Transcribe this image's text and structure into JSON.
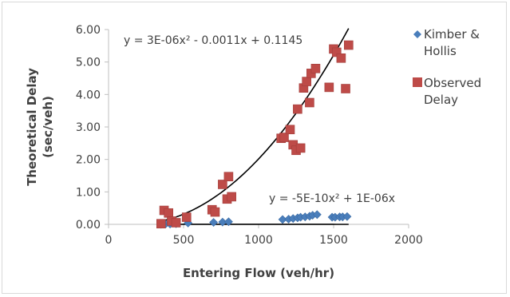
{
  "chart_data": {
    "type": "scatter",
    "xlabel": "Entering Flow (veh/hr)",
    "ylabel_lines": [
      "Theoretical Delay",
      "(sec/veh)"
    ],
    "xlim": [
      0,
      2000
    ],
    "ylim": [
      0,
      6
    ],
    "x_ticks": [
      "0",
      "500",
      "1000",
      "1500",
      "2000"
    ],
    "y_ticks": [
      "0.00",
      "1.00",
      "2.00",
      "3.00",
      "4.00",
      "5.00",
      "6.00"
    ],
    "grid": false,
    "legend_position": "right",
    "series": [
      {
        "name_lines": [
          "Kimber &",
          "Hollis"
        ],
        "marker": "diamond",
        "color": "#4a7ebb",
        "points": [
          [
            350,
            0.0
          ],
          [
            380,
            0.01
          ],
          [
            410,
            0.01
          ],
          [
            450,
            0.02
          ],
          [
            530,
            0.04
          ],
          [
            700,
            0.06
          ],
          [
            760,
            0.07
          ],
          [
            800,
            0.08
          ],
          [
            1160,
            0.15
          ],
          [
            1200,
            0.16
          ],
          [
            1230,
            0.18
          ],
          [
            1260,
            0.2
          ],
          [
            1280,
            0.22
          ],
          [
            1310,
            0.23
          ],
          [
            1340,
            0.25
          ],
          [
            1360,
            0.28
          ],
          [
            1390,
            0.3
          ],
          [
            1490,
            0.22
          ],
          [
            1510,
            0.22
          ],
          [
            1540,
            0.23
          ],
          [
            1560,
            0.23
          ],
          [
            1590,
            0.24
          ]
        ],
        "trendline": {
          "coeffs": [
            -5e-10,
            1e-06,
            0
          ],
          "x_range": [
            350,
            1600
          ],
          "color": "#000000"
        },
        "equation": "y = -5E-10x² + 1E-06x"
      },
      {
        "name_lines": [
          "Observed",
          "Delay"
        ],
        "marker": "square",
        "color": "#be4b48",
        "points": [
          [
            350,
            0.02
          ],
          [
            370,
            0.43
          ],
          [
            400,
            0.35
          ],
          [
            420,
            0.1
          ],
          [
            450,
            0.05
          ],
          [
            520,
            0.22
          ],
          [
            690,
            0.45
          ],
          [
            710,
            0.38
          ],
          [
            760,
            1.23
          ],
          [
            790,
            0.78
          ],
          [
            800,
            1.47
          ],
          [
            820,
            0.85
          ],
          [
            1150,
            2.65
          ],
          [
            1170,
            2.68
          ],
          [
            1210,
            2.92
          ],
          [
            1230,
            2.45
          ],
          [
            1250,
            2.28
          ],
          [
            1260,
            3.55
          ],
          [
            1280,
            2.35
          ],
          [
            1300,
            4.2
          ],
          [
            1320,
            4.4
          ],
          [
            1340,
            3.75
          ],
          [
            1350,
            4.65
          ],
          [
            1380,
            4.8
          ],
          [
            1470,
            4.22
          ],
          [
            1500,
            5.4
          ],
          [
            1520,
            5.3
          ],
          [
            1550,
            5.12
          ],
          [
            1580,
            4.18
          ],
          [
            1600,
            5.52
          ]
        ],
        "trendline": {
          "coeffs": [
            3e-06,
            -0.0011,
            0.1145
          ],
          "x_range": [
            350,
            1600
          ],
          "color": "#000000"
        },
        "equation": "y = 3E-06x² - 0.0011x + 0.1145"
      }
    ]
  }
}
